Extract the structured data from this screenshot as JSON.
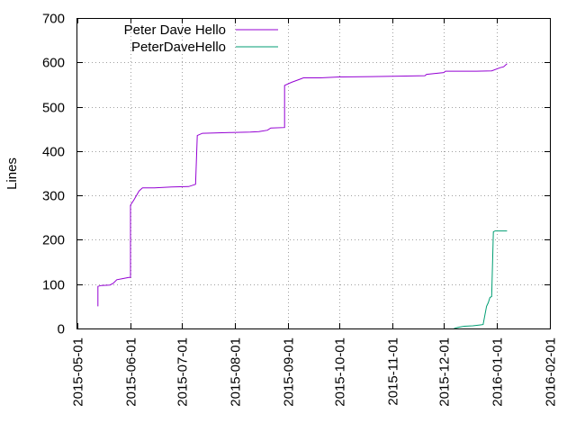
{
  "chart_data": {
    "type": "line",
    "title": "",
    "xlabel": "",
    "ylabel": "Lines",
    "xlim": [
      "2015-05-01",
      "2016-02-01"
    ],
    "ylim": [
      0,
      700
    ],
    "grid": true,
    "legend_position": "top-left",
    "x_ticks": [
      "2015-05-01",
      "2015-06-01",
      "2015-07-01",
      "2015-08-01",
      "2015-09-01",
      "2015-10-01",
      "2015-11-01",
      "2015-12-01",
      "2016-01-01",
      "2016-02-01"
    ],
    "y_ticks": [
      0,
      100,
      200,
      300,
      400,
      500,
      600,
      700
    ],
    "series": [
      {
        "name": "Peter Dave Hello",
        "color": "#9400d3",
        "points": [
          [
            "2015-05-13",
            50
          ],
          [
            "2015-05-13",
            95
          ],
          [
            "2015-05-15",
            97
          ],
          [
            "2015-05-20",
            98
          ],
          [
            "2015-05-22",
            102
          ],
          [
            "2015-05-24",
            110
          ],
          [
            "2015-05-27",
            112
          ],
          [
            "2015-05-31",
            115
          ],
          [
            "2015-06-01",
            115
          ],
          [
            "2015-06-01",
            278
          ],
          [
            "2015-06-03",
            290
          ],
          [
            "2015-06-06",
            310
          ],
          [
            "2015-06-08",
            317
          ],
          [
            "2015-06-15",
            317
          ],
          [
            "2015-06-20",
            318
          ],
          [
            "2015-06-25",
            319
          ],
          [
            "2015-07-05",
            320
          ],
          [
            "2015-07-09",
            325
          ],
          [
            "2015-07-10",
            435
          ],
          [
            "2015-07-13",
            440
          ],
          [
            "2015-07-20",
            441
          ],
          [
            "2015-07-30",
            442
          ],
          [
            "2015-08-10",
            443
          ],
          [
            "2015-08-15",
            444
          ],
          [
            "2015-08-20",
            447
          ],
          [
            "2015-08-22",
            452
          ],
          [
            "2015-08-30",
            453
          ],
          [
            "2015-08-30",
            548
          ],
          [
            "2015-09-03",
            555
          ],
          [
            "2015-09-08",
            562
          ],
          [
            "2015-09-10",
            565
          ],
          [
            "2015-09-20",
            565
          ],
          [
            "2015-10-01",
            567
          ],
          [
            "2015-10-20",
            568
          ],
          [
            "2015-11-05",
            569
          ],
          [
            "2015-11-20",
            570
          ],
          [
            "2015-11-21",
            573
          ],
          [
            "2015-12-01",
            577
          ],
          [
            "2015-12-02",
            580
          ],
          [
            "2015-12-20",
            580
          ],
          [
            "2015-12-29",
            581
          ],
          [
            "2016-01-03",
            588
          ],
          [
            "2016-01-05",
            590
          ],
          [
            "2016-01-07",
            597
          ]
        ]
      },
      {
        "name": "PeterDaveHello",
        "color": "#009e73",
        "points": [
          [
            "2015-12-07",
            0
          ],
          [
            "2015-12-10",
            3
          ],
          [
            "2015-12-13",
            5
          ],
          [
            "2015-12-18",
            6
          ],
          [
            "2015-12-22",
            8
          ],
          [
            "2015-12-24",
            9
          ],
          [
            "2015-12-26",
            50
          ],
          [
            "2015-12-27",
            58
          ],
          [
            "2015-12-28",
            70
          ],
          [
            "2015-12-29",
            72
          ],
          [
            "2015-12-30",
            218
          ],
          [
            "2015-12-31",
            220
          ],
          [
            "2016-01-07",
            220
          ]
        ]
      }
    ]
  }
}
